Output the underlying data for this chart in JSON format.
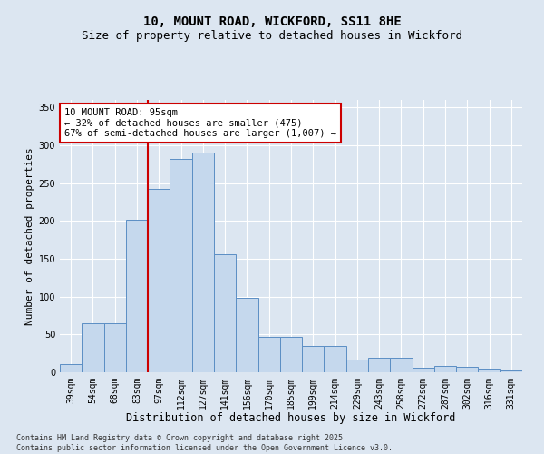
{
  "title1": "10, MOUNT ROAD, WICKFORD, SS11 8HE",
  "title2": "Size of property relative to detached houses in Wickford",
  "xlabel": "Distribution of detached houses by size in Wickford",
  "ylabel": "Number of detached properties",
  "categories": [
    "39sqm",
    "54sqm",
    "68sqm",
    "83sqm",
    "97sqm",
    "112sqm",
    "127sqm",
    "141sqm",
    "156sqm",
    "170sqm",
    "185sqm",
    "199sqm",
    "214sqm",
    "229sqm",
    "243sqm",
    "258sqm",
    "272sqm",
    "287sqm",
    "302sqm",
    "316sqm",
    "331sqm"
  ],
  "values": [
    11,
    65,
    65,
    202,
    242,
    282,
    290,
    156,
    98,
    47,
    47,
    35,
    35,
    17,
    19,
    19,
    6,
    9,
    7,
    5,
    2
  ],
  "bar_color": "#c5d8ed",
  "bar_edge_color": "#5b8ec4",
  "vline_color": "#cc0000",
  "vline_x_index": 4,
  "annotation_text": "10 MOUNT ROAD: 95sqm\n← 32% of detached houses are smaller (475)\n67% of semi-detached houses are larger (1,007) →",
  "annotation_box_color": "#ffffff",
  "annotation_box_edge": "#cc0000",
  "ylim": [
    0,
    360
  ],
  "yticks": [
    0,
    50,
    100,
    150,
    200,
    250,
    300,
    350
  ],
  "background_color": "#dce6f1",
  "plot_bg_color": "#dce6f1",
  "grid_color": "#ffffff",
  "footer1": "Contains HM Land Registry data © Crown copyright and database right 2025.",
  "footer2": "Contains public sector information licensed under the Open Government Licence v3.0.",
  "title_fontsize": 10,
  "subtitle_fontsize": 9,
  "tick_fontsize": 7,
  "xlabel_fontsize": 8.5,
  "ylabel_fontsize": 8,
  "annotation_fontsize": 7.5,
  "footer_fontsize": 6
}
